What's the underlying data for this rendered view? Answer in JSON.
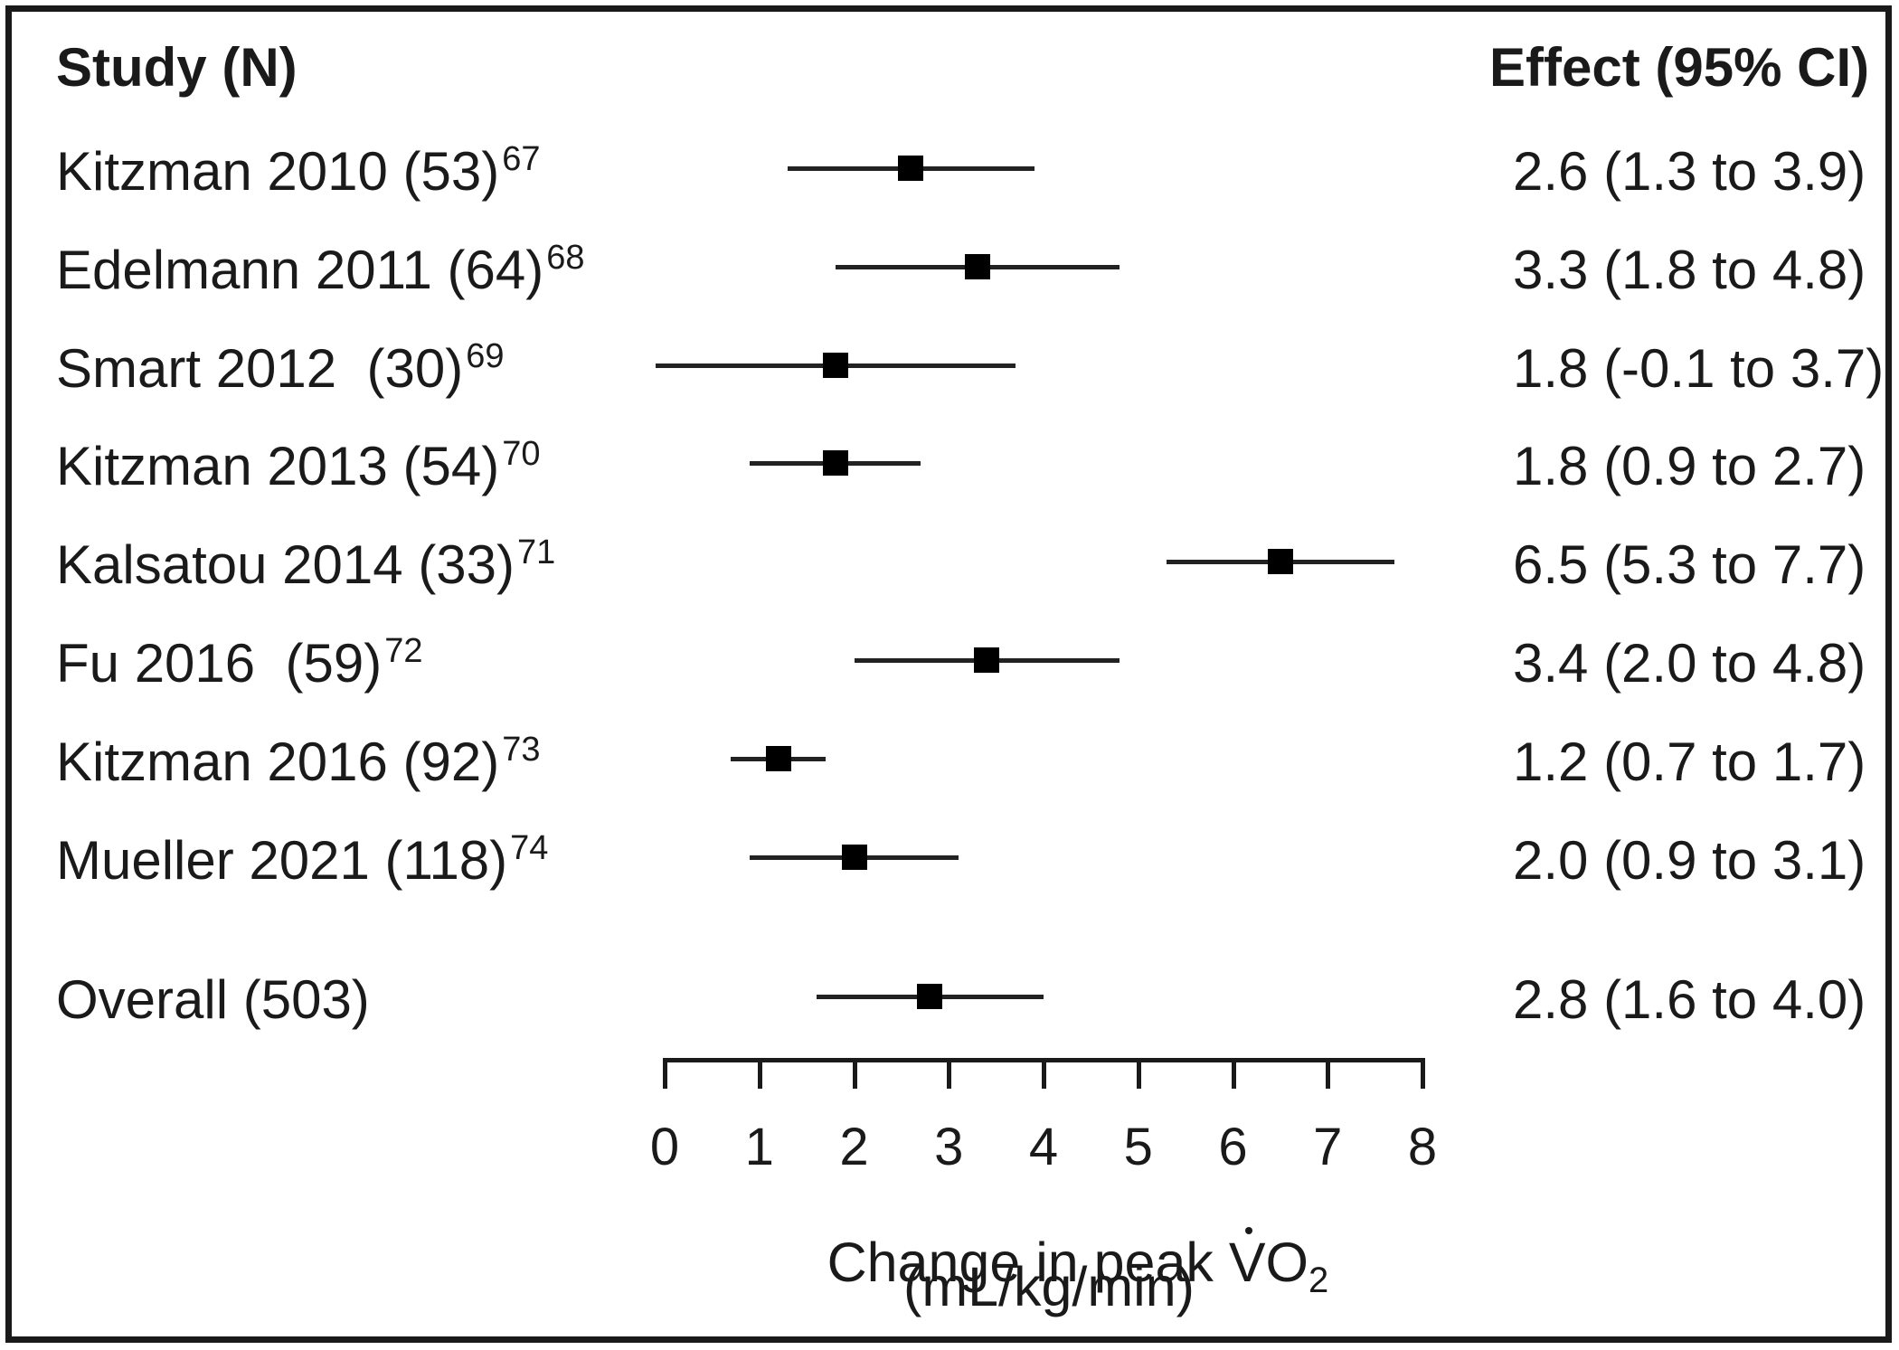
{
  "figure": {
    "bg_color": "#ffffff",
    "border_color": "#1a1a1a",
    "marker_color": "#000000"
  },
  "header": {
    "study": "Study (N)",
    "effect": "Effect (95% CI)"
  },
  "chart_data": {
    "type": "forest",
    "x_axis": {
      "ticks": [
        0,
        1,
        2,
        3,
        4,
        5,
        6,
        7,
        8
      ],
      "range": [
        0,
        8
      ],
      "label_text": "Change in peak ",
      "label_symbol_v": "V",
      "label_symbol_o": "O",
      "label_symbol_sub": "2",
      "label_units": "(mL/kg/min)"
    },
    "studies": [
      {
        "label": "Kitzman 2010 (53)",
        "ref": "67",
        "n": 53,
        "effect": 2.6,
        "ci_low": 1.3,
        "ci_high": 3.9,
        "effect_text": "2.6 (1.3 to 3.9)"
      },
      {
        "label": "Edelmann 2011 (64)",
        "ref": "68",
        "n": 64,
        "effect": 3.3,
        "ci_low": 1.8,
        "ci_high": 4.8,
        "effect_text": "3.3 (1.8 to 4.8)"
      },
      {
        "label": "Smart 2012  (30)",
        "ref": "69",
        "n": 30,
        "effect": 1.8,
        "ci_low": -0.1,
        "ci_high": 3.7,
        "effect_text": "1.8 (-0.1 to 3.7)"
      },
      {
        "label": "Kitzman 2013 (54)",
        "ref": "70",
        "n": 54,
        "effect": 1.8,
        "ci_low": 0.9,
        "ci_high": 2.7,
        "effect_text": "1.8 (0.9 to 2.7)"
      },
      {
        "label": "Kalsatou 2014 (33)",
        "ref": "71",
        "n": 33,
        "effect": 6.5,
        "ci_low": 5.3,
        "ci_high": 7.7,
        "effect_text": "6.5 (5.3 to 7.7)"
      },
      {
        "label": "Fu 2016  (59)",
        "ref": "72",
        "n": 59,
        "effect": 3.4,
        "ci_low": 2.0,
        "ci_high": 4.8,
        "effect_text": "3.4 (2.0 to 4.8)"
      },
      {
        "label": "Kitzman 2016 (92)",
        "ref": "73",
        "n": 92,
        "effect": 1.2,
        "ci_low": 0.7,
        "ci_high": 1.7,
        "effect_text": "1.2 (0.7 to 1.7)"
      },
      {
        "label": "Mueller 2021 (118)",
        "ref": "74",
        "n": 118,
        "effect": 2.0,
        "ci_low": 0.9,
        "ci_high": 3.1,
        "effect_text": "2.0 (0.9 to 3.1)"
      }
    ],
    "overall": {
      "label": "Overall (503)",
      "ref": "",
      "n": 503,
      "effect": 2.8,
      "ci_low": 1.6,
      "ci_high": 4.0,
      "effect_text": "2.8 (1.6 to 4.0)"
    }
  }
}
